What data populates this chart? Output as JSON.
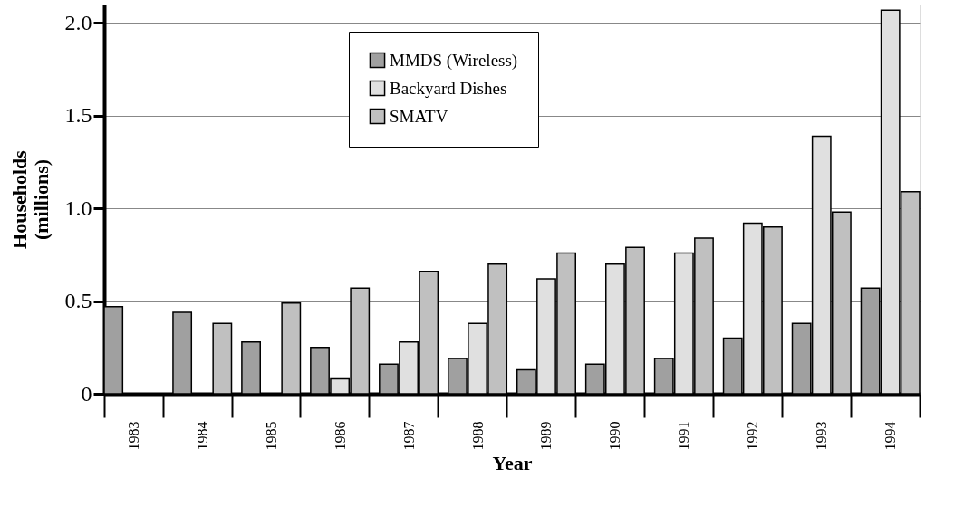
{
  "chart_data": {
    "type": "bar",
    "xlabel": "Year",
    "ylabel": "Households (millions)",
    "categories": [
      "1983",
      "1984",
      "1985",
      "1986",
      "1987",
      "1988",
      "1989",
      "1990",
      "1991",
      "1992",
      "1993",
      "1994"
    ],
    "series": [
      {
        "name": "MMDS (Wireless)",
        "color": "#a0a0a0",
        "values": [
          0.47,
          0.44,
          0.28,
          0.25,
          0.16,
          0.19,
          0.13,
          0.16,
          0.19,
          0.3,
          0.38,
          0.57
        ]
      },
      {
        "name": "Backyard Dishes",
        "color": "#e0e0e0",
        "values": [
          null,
          null,
          null,
          0.08,
          0.28,
          0.38,
          0.62,
          0.7,
          0.76,
          0.92,
          1.39,
          2.07
        ]
      },
      {
        "name": "SMATV",
        "color": "#c0c0c0",
        "values": [
          null,
          0.38,
          0.49,
          0.57,
          0.66,
          0.7,
          0.76,
          0.79,
          0.84,
          0.9,
          0.98,
          1.09
        ]
      }
    ],
    "ylim": [
      0,
      2.1
    ],
    "yticks": [
      0,
      {
        "value": 0.5,
        "label": "0.5"
      },
      {
        "value": 1,
        "label": "1.0"
      },
      {
        "value": 1.5,
        "label": "1.5"
      },
      {
        "value": 2,
        "label": "2.0"
      }
    ],
    "grid": "y",
    "legend": "top"
  }
}
